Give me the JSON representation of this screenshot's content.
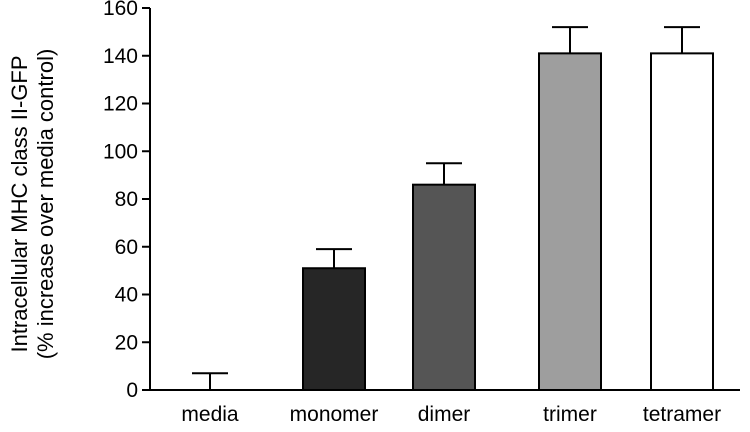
{
  "chart_data": {
    "type": "bar",
    "title": "",
    "xlabel": "",
    "ylabel_lines": [
      "Intracellular MHC class II-GFP",
      "(% increase over media control)"
    ],
    "categories": [
      "media",
      "monomer",
      "dimer",
      "trimer",
      "tetramer"
    ],
    "values": [
      0,
      51,
      86,
      141,
      141
    ],
    "error_upper": [
      7,
      8,
      9,
      11,
      11
    ],
    "bar_colors": [
      "#ffffff",
      "#262626",
      "#555555",
      "#9e9e9e",
      "#ffffff"
    ],
    "ylim": [
      0,
      160
    ],
    "yticks": [
      0,
      20,
      40,
      60,
      80,
      100,
      120,
      140,
      160
    ],
    "grid": false
  }
}
